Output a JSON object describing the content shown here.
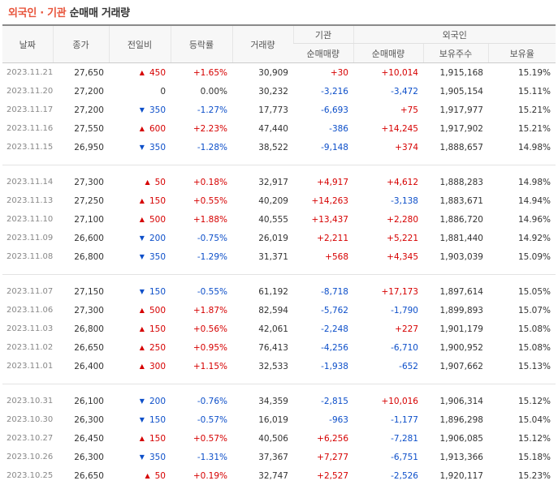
{
  "title": {
    "highlight": "외국인 · 기관",
    "rest": "순매매 거래량"
  },
  "headers": {
    "date": "날짜",
    "close": "종가",
    "change": "전일비",
    "rate": "등락률",
    "volume": "거래량",
    "inst_group": "기관",
    "foreign_group": "외국인",
    "inst_net": "순매매량",
    "foreign_net": "순매매량",
    "holdings": "보유주수",
    "ratio": "보유율"
  },
  "colors": {
    "up": "#d60000",
    "down": "#0d4fc9",
    "title_accent": "#e8553c"
  },
  "groups": [
    [
      {
        "date": "2023.11.21",
        "close": "27,650",
        "dir": "up",
        "change": "450",
        "rate": "+1.65%",
        "volume": "30,909",
        "inst": "+30",
        "foreign": "+10,014",
        "holdings": "1,915,168",
        "ratio": "15.19%"
      },
      {
        "date": "2023.11.20",
        "close": "27,200",
        "dir": "none",
        "change": "0",
        "rate": "0.00%",
        "volume": "30,232",
        "inst": "-3,216",
        "foreign": "-3,472",
        "holdings": "1,905,154",
        "ratio": "15.11%"
      },
      {
        "date": "2023.11.17",
        "close": "27,200",
        "dir": "down",
        "change": "350",
        "rate": "-1.27%",
        "volume": "17,773",
        "inst": "-6,693",
        "foreign": "+75",
        "holdings": "1,917,977",
        "ratio": "15.21%"
      },
      {
        "date": "2023.11.16",
        "close": "27,550",
        "dir": "up",
        "change": "600",
        "rate": "+2.23%",
        "volume": "47,440",
        "inst": "-386",
        "foreign": "+14,245",
        "holdings": "1,917,902",
        "ratio": "15.21%"
      },
      {
        "date": "2023.11.15",
        "close": "26,950",
        "dir": "down",
        "change": "350",
        "rate": "-1.28%",
        "volume": "38,522",
        "inst": "-9,148",
        "foreign": "+374",
        "holdings": "1,888,657",
        "ratio": "14.98%"
      }
    ],
    [
      {
        "date": "2023.11.14",
        "close": "27,300",
        "dir": "up",
        "change": "50",
        "rate": "+0.18%",
        "volume": "32,917",
        "inst": "+4,917",
        "foreign": "+4,612",
        "holdings": "1,888,283",
        "ratio": "14.98%"
      },
      {
        "date": "2023.11.13",
        "close": "27,250",
        "dir": "up",
        "change": "150",
        "rate": "+0.55%",
        "volume": "40,209",
        "inst": "+14,263",
        "foreign": "-3,138",
        "holdings": "1,883,671",
        "ratio": "14.94%"
      },
      {
        "date": "2023.11.10",
        "close": "27,100",
        "dir": "up",
        "change": "500",
        "rate": "+1.88%",
        "volume": "40,555",
        "inst": "+13,437",
        "foreign": "+2,280",
        "holdings": "1,886,720",
        "ratio": "14.96%"
      },
      {
        "date": "2023.11.09",
        "close": "26,600",
        "dir": "down",
        "change": "200",
        "rate": "-0.75%",
        "volume": "26,019",
        "inst": "+2,211",
        "foreign": "+5,221",
        "holdings": "1,881,440",
        "ratio": "14.92%"
      },
      {
        "date": "2023.11.08",
        "close": "26,800",
        "dir": "down",
        "change": "350",
        "rate": "-1.29%",
        "volume": "31,371",
        "inst": "+568",
        "foreign": "+4,345",
        "holdings": "1,903,039",
        "ratio": "15.09%"
      }
    ],
    [
      {
        "date": "2023.11.07",
        "close": "27,150",
        "dir": "down",
        "change": "150",
        "rate": "-0.55%",
        "volume": "61,192",
        "inst": "-8,718",
        "foreign": "+17,173",
        "holdings": "1,897,614",
        "ratio": "15.05%"
      },
      {
        "date": "2023.11.06",
        "close": "27,300",
        "dir": "up",
        "change": "500",
        "rate": "+1.87%",
        "volume": "82,594",
        "inst": "-5,762",
        "foreign": "-1,790",
        "holdings": "1,899,893",
        "ratio": "15.07%"
      },
      {
        "date": "2023.11.03",
        "close": "26,800",
        "dir": "up",
        "change": "150",
        "rate": "+0.56%",
        "volume": "42,061",
        "inst": "-2,248",
        "foreign": "+227",
        "holdings": "1,901,179",
        "ratio": "15.08%"
      },
      {
        "date": "2023.11.02",
        "close": "26,650",
        "dir": "up",
        "change": "250",
        "rate": "+0.95%",
        "volume": "76,413",
        "inst": "-4,256",
        "foreign": "-6,710",
        "holdings": "1,900,952",
        "ratio": "15.08%"
      },
      {
        "date": "2023.11.01",
        "close": "26,400",
        "dir": "up",
        "change": "300",
        "rate": "+1.15%",
        "volume": "32,533",
        "inst": "-1,938",
        "foreign": "-652",
        "holdings": "1,907,662",
        "ratio": "15.13%"
      }
    ],
    [
      {
        "date": "2023.10.31",
        "close": "26,100",
        "dir": "down",
        "change": "200",
        "rate": "-0.76%",
        "volume": "34,359",
        "inst": "-2,815",
        "foreign": "+10,016",
        "holdings": "1,906,314",
        "ratio": "15.12%"
      },
      {
        "date": "2023.10.30",
        "close": "26,300",
        "dir": "down",
        "change": "150",
        "rate": "-0.57%",
        "volume": "16,019",
        "inst": "-963",
        "foreign": "-1,177",
        "holdings": "1,896,298",
        "ratio": "15.04%"
      },
      {
        "date": "2023.10.27",
        "close": "26,450",
        "dir": "up",
        "change": "150",
        "rate": "+0.57%",
        "volume": "40,506",
        "inst": "+6,256",
        "foreign": "-7,281",
        "holdings": "1,906,085",
        "ratio": "15.12%"
      },
      {
        "date": "2023.10.26",
        "close": "26,300",
        "dir": "down",
        "change": "350",
        "rate": "-1.31%",
        "volume": "37,367",
        "inst": "+7,277",
        "foreign": "-6,751",
        "holdings": "1,913,366",
        "ratio": "15.18%"
      },
      {
        "date": "2023.10.25",
        "close": "26,650",
        "dir": "up",
        "change": "50",
        "rate": "+0.19%",
        "volume": "32,747",
        "inst": "+2,527",
        "foreign": "-2,526",
        "holdings": "1,920,117",
        "ratio": "15.23%"
      }
    ]
  ]
}
